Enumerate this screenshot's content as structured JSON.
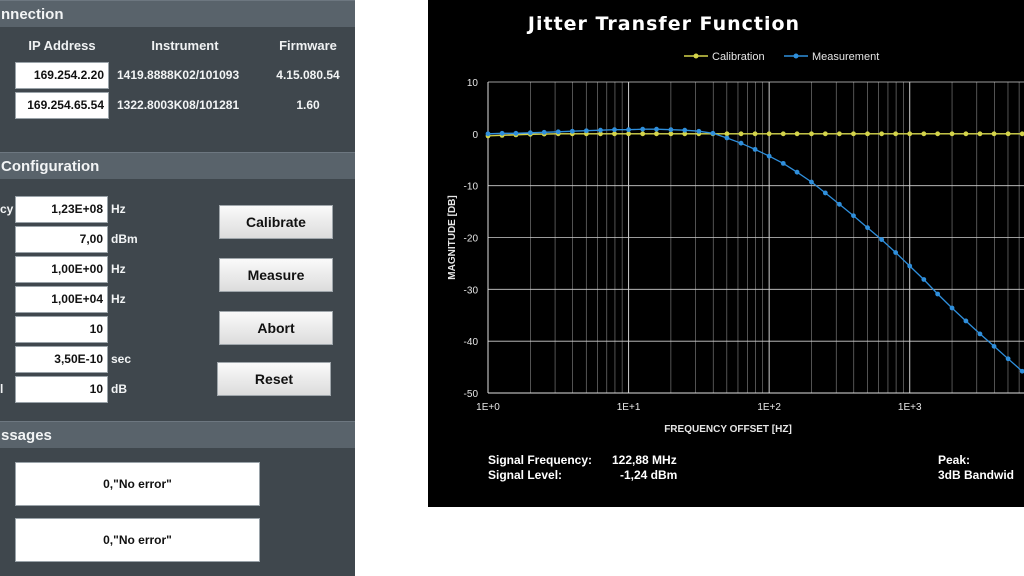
{
  "connection": {
    "title": "nnection",
    "headers": {
      "ip": "IP Address",
      "instrument": "Instrument",
      "firmware": "Firmware"
    },
    "rows": [
      {
        "ip": "169.254.2.20",
        "instrument": "1419.8888K02/101093",
        "firmware": "4.15.080.54"
      },
      {
        "ip": "169.254.65.54",
        "instrument": "1322.8003K08/101281",
        "firmware": "1.60"
      }
    ]
  },
  "configuration": {
    "title": "Configuration",
    "fields": [
      {
        "label": "cy",
        "value": "1,23E+08",
        "unit": "Hz"
      },
      {
        "label": "",
        "value": "7,00",
        "unit": "dBm"
      },
      {
        "label": "",
        "value": "1,00E+00",
        "unit": "Hz"
      },
      {
        "label": "",
        "value": "1,00E+04",
        "unit": "Hz"
      },
      {
        "label": "",
        "value": "10",
        "unit": ""
      },
      {
        "label": "",
        "value": "3,50E-10",
        "unit": "sec"
      },
      {
        "label": "l",
        "value": "10",
        "unit": "dB"
      }
    ],
    "buttons": {
      "calibrate": "Calibrate",
      "measure": "Measure",
      "abort": "Abort",
      "reset": "Reset"
    }
  },
  "messages": {
    "title": "ssages",
    "items": [
      "0,\"No error\"",
      "0,\"No error\""
    ]
  },
  "footer": {
    "signal_frequency_label": "Signal Frequency:",
    "signal_frequency_value": "122,88 MHz",
    "signal_level_label": "Signal Level:",
    "signal_level_value": "-1,24 dBm",
    "peak_label": "Peak:",
    "bandwidth_label": "3dB Bandwid"
  },
  "colors": {
    "calibration": "#d4d44a",
    "measurement": "#2f8fdc"
  },
  "chart_data": {
    "type": "line",
    "title": "Jitter Transfer Function",
    "xlabel": "FREQUENCY OFFSET [HZ]",
    "ylabel": "MAGNITUDE [DB]",
    "x_scale": "log",
    "xlim": [
      1,
      6500
    ],
    "ylim": [
      -50,
      10
    ],
    "x_ticks": [
      1,
      10,
      100,
      1000
    ],
    "x_tick_labels": [
      "1E+0",
      "1E+1",
      "1E+2",
      "1E+3"
    ],
    "y_ticks": [
      10,
      0,
      -10,
      -20,
      -30,
      -40,
      -50
    ],
    "y_tick_labels": [
      "10",
      "0",
      "-10",
      "-20",
      "-30",
      "-40",
      "-50"
    ],
    "grid": true,
    "legend": "top-center",
    "series": [
      {
        "name": "Calibration",
        "x": [
          1,
          1.26,
          1.58,
          2,
          2.51,
          3.16,
          3.98,
          5.01,
          6.31,
          7.94,
          10,
          12.6,
          15.8,
          20,
          25.1,
          31.6,
          39.8,
          50.1,
          63.1,
          79.4,
          100,
          126,
          158,
          200,
          251,
          316,
          398,
          501,
          631,
          794,
          1000,
          1260,
          1580,
          2000,
          2510,
          3160,
          3980,
          5010,
          6310
        ],
        "y": [
          -0.4,
          -0.3,
          -0.2,
          -0.1,
          -0.05,
          0,
          0,
          0,
          0,
          0,
          0,
          0,
          0,
          0,
          0,
          0,
          0,
          0,
          0,
          0,
          0,
          0,
          0,
          0,
          0,
          0,
          0,
          0,
          0,
          0,
          0,
          0,
          0,
          0,
          0,
          0,
          0,
          0,
          0
        ]
      },
      {
        "name": "Measurement",
        "x": [
          1,
          1.26,
          1.58,
          2,
          2.51,
          3.16,
          3.98,
          5.01,
          6.31,
          7.94,
          10,
          12.6,
          15.8,
          20,
          25.1,
          31.6,
          39.8,
          50.1,
          63.1,
          79.4,
          100,
          126,
          158,
          200,
          251,
          316,
          398,
          501,
          631,
          794,
          1000,
          1260,
          1580,
          2000,
          2510,
          3160,
          3980,
          5010,
          6310
        ],
        "y": [
          0,
          0.1,
          0.1,
          0.2,
          0.3,
          0.4,
          0.5,
          0.6,
          0.7,
          0.8,
          0.8,
          0.9,
          0.9,
          0.8,
          0.7,
          0.5,
          0.1,
          -0.8,
          -1.8,
          -3,
          -4.3,
          -5.7,
          -7.4,
          -9.3,
          -11.4,
          -13.6,
          -15.8,
          -18.1,
          -20.4,
          -22.9,
          -25.5,
          -28.1,
          -30.9,
          -33.6,
          -36.1,
          -38.6,
          -41,
          -43.4,
          -45.8
        ]
      }
    ]
  }
}
